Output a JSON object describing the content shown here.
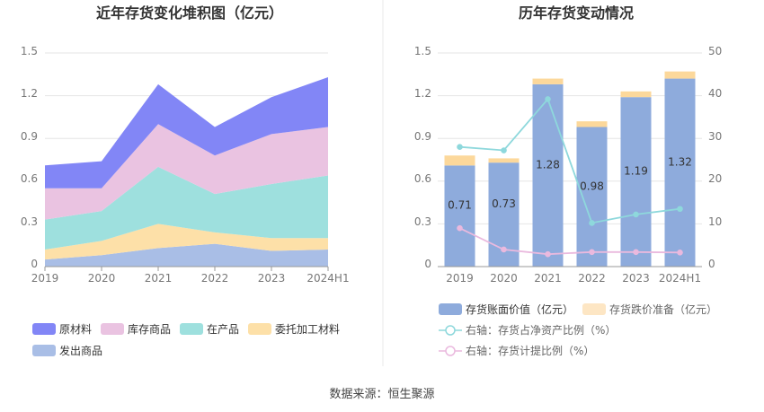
{
  "left_chart": {
    "title": "近年存货变化堆积图（亿元）",
    "categories": [
      "2019",
      "2020",
      "2021",
      "2022",
      "2023",
      "2024H1"
    ],
    "y_ticks": [
      "0",
      "0.3",
      "0.6",
      "0.9",
      "1.2",
      "1.5"
    ],
    "legend": [
      "原材料",
      "库存商品",
      "在产品",
      "委托加工材料",
      "发出商品"
    ]
  },
  "right_chart": {
    "title": "历年存货变动情况",
    "categories": [
      "2019",
      "2020",
      "2021",
      "2022",
      "2023",
      "2024H1"
    ],
    "y_left_ticks": [
      "0",
      "0.3",
      "0.6",
      "0.9",
      "1.2",
      "1.5"
    ],
    "y_right_ticks": [
      "0",
      "10",
      "20",
      "30",
      "40",
      "50"
    ],
    "bar_labels": [
      "0.71",
      "0.73",
      "1.28",
      "0.98",
      "1.19",
      "1.32"
    ],
    "legend": [
      "存货账面价值（亿元）",
      "存货跌价准备（亿元）",
      "右轴：存货占净资产比例（%）",
      "右轴：存货计提比例（%）"
    ]
  },
  "source_text": "数据来源：恒生聚源",
  "colors": {
    "raw": "#8286f6",
    "stock": "#eac3e1",
    "wip": "#9ee0de",
    "consigned": "#fde0a8",
    "shipped": "#a9bee6",
    "bar_book": "#8eabdc",
    "bar_reserve": "#fcd89b",
    "line_ratio": "#8ed8dc",
    "line_provision": "#eab9de"
  },
  "chart_data": [
    {
      "type": "area",
      "stacked": true,
      "title": "近年存货变化堆积图（亿元）",
      "categories": [
        "2019",
        "2020",
        "2021",
        "2022",
        "2023",
        "2024H1"
      ],
      "ylim": [
        0,
        1.5
      ],
      "series": [
        {
          "name": "发出商品",
          "values": [
            0.05,
            0.08,
            0.13,
            0.16,
            0.11,
            0.12
          ]
        },
        {
          "name": "委托加工材料",
          "values": [
            0.07,
            0.1,
            0.17,
            0.08,
            0.09,
            0.08
          ]
        },
        {
          "name": "在产品",
          "values": [
            0.21,
            0.21,
            0.4,
            0.27,
            0.38,
            0.44
          ]
        },
        {
          "name": "库存商品",
          "values": [
            0.22,
            0.16,
            0.3,
            0.27,
            0.35,
            0.34
          ]
        },
        {
          "name": "原材料",
          "values": [
            0.16,
            0.19,
            0.28,
            0.2,
            0.26,
            0.35
          ]
        }
      ]
    },
    {
      "type": "bar",
      "stacked": true,
      "title": "历年存货变动情况",
      "categories": [
        "2019",
        "2020",
        "2021",
        "2022",
        "2023",
        "2024H1"
      ],
      "ylim": [
        0,
        1.5
      ],
      "y2lim": [
        0,
        50
      ],
      "series": [
        {
          "name": "存货账面价值（亿元）",
          "values": [
            0.71,
            0.73,
            1.28,
            0.98,
            1.19,
            1.32
          ]
        },
        {
          "name": "存货跌价准备（亿元）",
          "values": [
            0.07,
            0.03,
            0.04,
            0.04,
            0.04,
            0.05
          ]
        },
        {
          "name": "右轴：存货占净资产比例（%）",
          "axis": "right",
          "type": "line",
          "values": [
            28.0,
            27.2,
            39.2,
            10.2,
            12.2,
            13.5
          ]
        },
        {
          "name": "右轴：存货计提比例（%）",
          "axis": "right",
          "type": "line",
          "values": [
            9.0,
            4.0,
            2.9,
            3.4,
            3.4,
            3.3
          ]
        }
      ]
    }
  ]
}
